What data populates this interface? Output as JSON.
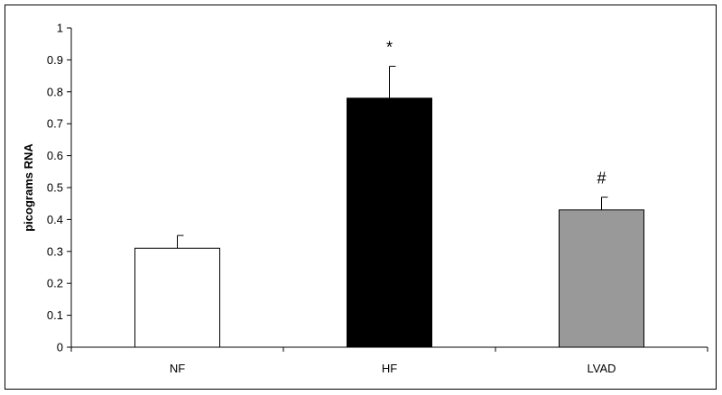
{
  "chart_data": {
    "type": "bar",
    "categories": [
      "NF",
      "HF",
      "LVAD"
    ],
    "values": [
      0.31,
      0.78,
      0.43
    ],
    "errors": [
      0.04,
      0.1,
      0.04
    ],
    "annotations": [
      "",
      "*",
      "#"
    ],
    "colors": [
      "#ffffff",
      "#000000",
      "#999999"
    ],
    "title": "",
    "xlabel": "",
    "ylabel": "picograms RNA",
    "ylim": [
      0,
      1
    ],
    "yticks": [
      "0",
      "0.1",
      "0.2",
      "0.3",
      "0.4",
      "0.5",
      "0.6",
      "0.7",
      "0.8",
      "0.9",
      "1"
    ],
    "grid": false,
    "legend": "none"
  }
}
